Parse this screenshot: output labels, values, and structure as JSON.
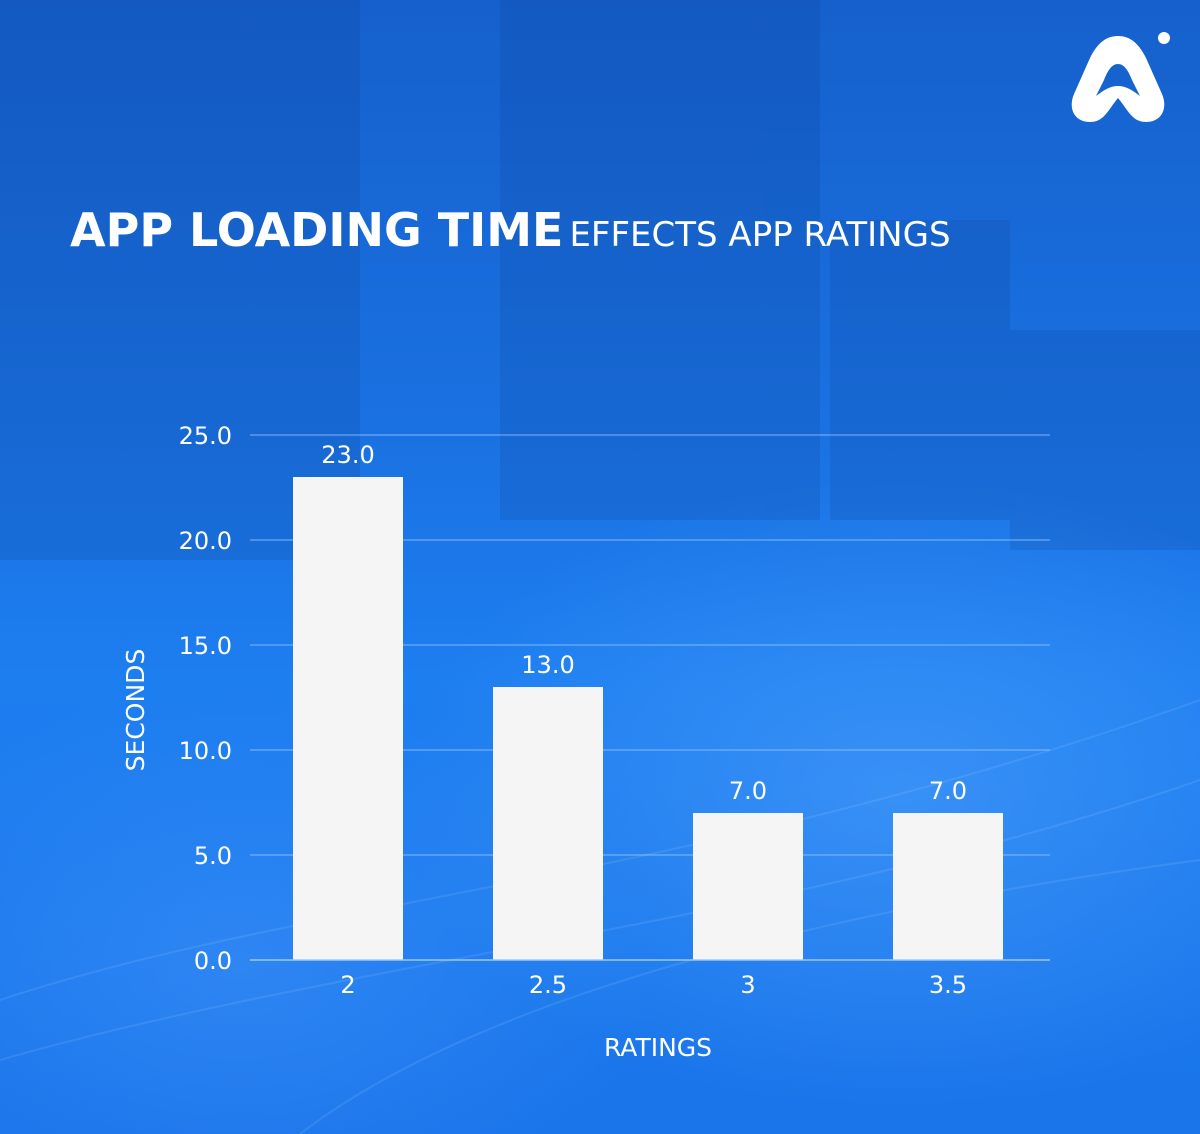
{
  "title": {
    "bold": "APP LOADING TIME",
    "light": "EFFECTS APP RATINGS"
  },
  "logo": {
    "icon": "brand-arch-logo-icon",
    "color": "#ffffff"
  },
  "colors": {
    "background": "#1a70e0",
    "bar": "#f5f5f5",
    "grid": "#9cc6ff",
    "text": "#ffffff"
  },
  "chart_data": {
    "type": "bar",
    "categories": [
      "2",
      "2.5",
      "3",
      "3.5"
    ],
    "values": [
      23.0,
      13.0,
      7.0,
      7.0
    ],
    "data_labels": [
      "23.0",
      "13.0",
      "7.0",
      "7.0"
    ],
    "title": "APP LOADING TIME EFFECTS APP RATINGS",
    "xlabel": "RATINGS",
    "ylabel": "SECONDS",
    "ylim": [
      0,
      25
    ],
    "yticks": [
      "0.0",
      "5.0",
      "10.0",
      "15.0",
      "20.0",
      "25.0"
    ],
    "grid": true,
    "legend": "none"
  }
}
